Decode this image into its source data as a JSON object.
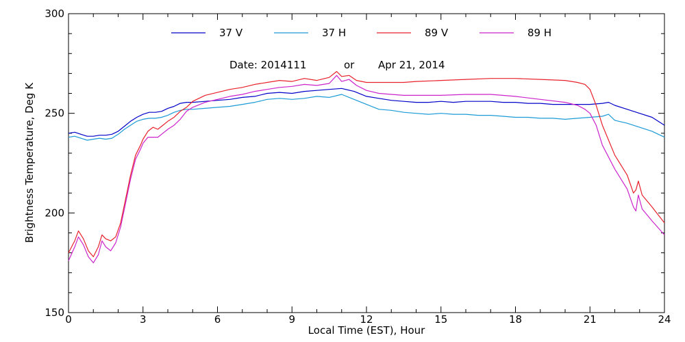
{
  "chart_data": {
    "type": "line",
    "title": "",
    "xlabel": "Local Time (EST), Hour",
    "ylabel": "Brightness Temperature, Deg K",
    "xlim": [
      0,
      24
    ],
    "ylim": [
      150,
      300
    ],
    "xticks": [
      0,
      3,
      6,
      9,
      12,
      15,
      18,
      21,
      24
    ],
    "yticks": [
      150,
      200,
      250,
      300
    ],
    "grid": false,
    "legend_position": "top",
    "annotation": {
      "date_label": "Date: 2014111",
      "or_label": "or",
      "date_text": "Apr 21, 2014"
    },
    "series": [
      {
        "name": "37 V",
        "color": "#0000c8",
        "x": [
          0,
          0.25,
          0.5,
          0.75,
          1,
          1.25,
          1.5,
          1.75,
          2,
          2.25,
          2.5,
          2.75,
          3,
          3.25,
          3.5,
          3.75,
          4,
          4.25,
          4.5,
          4.75,
          5,
          5.5,
          6,
          6.5,
          7,
          7.5,
          8,
          8.5,
          9,
          9.5,
          10,
          10.5,
          11,
          11.5,
          12,
          12.5,
          13,
          13.5,
          14,
          14.5,
          15,
          15.5,
          16,
          16.5,
          17,
          17.5,
          18,
          18.5,
          19,
          19.5,
          20,
          20.5,
          21,
          21.5,
          21.75,
          22,
          22.5,
          23,
          23.5,
          24
        ],
        "y": [
          240,
          240.5,
          239.5,
          238.5,
          238.5,
          239,
          239,
          239.5,
          241,
          243.5,
          246,
          248,
          249.5,
          250.5,
          250.5,
          251,
          252.5,
          253.5,
          255,
          255.5,
          255.5,
          256,
          256.5,
          257,
          258,
          258.5,
          260,
          260.5,
          260,
          261,
          261.5,
          262,
          262.5,
          261,
          258.5,
          257.5,
          256.5,
          256,
          255.5,
          255.5,
          256,
          255.5,
          256,
          256,
          256,
          255.5,
          255.5,
          255,
          255,
          254.5,
          254.5,
          254.5,
          254.5,
          255,
          255.5,
          254,
          252,
          250,
          248,
          244
        ]
      },
      {
        "name": "37 H",
        "color": "#1a9ad6",
        "x": [
          0,
          0.25,
          0.5,
          0.75,
          1,
          1.25,
          1.5,
          1.75,
          2,
          2.25,
          2.5,
          2.75,
          3,
          3.25,
          3.5,
          3.75,
          4,
          4.25,
          4.5,
          4.75,
          5,
          5.5,
          6,
          6.5,
          7,
          7.5,
          8,
          8.5,
          9,
          9.5,
          10,
          10.5,
          11,
          11.5,
          12,
          12.5,
          13,
          13.5,
          14,
          14.5,
          15,
          15.5,
          16,
          16.5,
          17,
          17.5,
          18,
          18.5,
          19,
          19.5,
          20,
          20.5,
          21,
          21.5,
          21.75,
          22,
          22.5,
          23,
          23.5,
          24
        ],
        "y": [
          238,
          238.5,
          237.5,
          236.5,
          237,
          237.5,
          237,
          237.5,
          239.5,
          242,
          244,
          246,
          247,
          247.5,
          247.5,
          248,
          249,
          250.5,
          251.5,
          252,
          252,
          252.5,
          253,
          253.5,
          254.5,
          255.5,
          257,
          257.5,
          257,
          257.5,
          258.5,
          258,
          259.5,
          257,
          254.5,
          252,
          251.5,
          250.5,
          250,
          249.5,
          250,
          249.5,
          249.5,
          249,
          249,
          248.5,
          248,
          248,
          247.5,
          247.5,
          247,
          247.5,
          248,
          248.5,
          249.5,
          246.5,
          245,
          243,
          241,
          238
        ]
      },
      {
        "name": "89 V",
        "color": "#e8202a",
        "x": [
          0,
          0.25,
          0.4,
          0.6,
          0.8,
          1,
          1.2,
          1.35,
          1.5,
          1.7,
          1.9,
          2.1,
          2.3,
          2.5,
          2.7,
          2.9,
          3,
          3.2,
          3.4,
          3.6,
          3.8,
          4,
          4.25,
          4.5,
          4.75,
          5,
          5.5,
          6,
          6.5,
          7,
          7.5,
          8,
          8.5,
          9,
          9.5,
          10,
          10.5,
          10.8,
          11,
          11.3,
          11.6,
          12,
          12.5,
          13,
          13.5,
          14,
          15,
          16,
          17,
          18,
          19,
          20,
          20.5,
          20.8,
          21,
          21.25,
          21.5,
          22,
          22.5,
          22.75,
          22.85,
          22.95,
          23.1,
          23.5,
          24
        ],
        "y": [
          180,
          186,
          191,
          187,
          181,
          178,
          183,
          189,
          187,
          186,
          188,
          195,
          207,
          219,
          229,
          234,
          237,
          241,
          243,
          242,
          244,
          246,
          248,
          251,
          253,
          256,
          259,
          260.5,
          262,
          263,
          264.5,
          265.5,
          266.5,
          266,
          267.5,
          266.5,
          268,
          271,
          268.5,
          269,
          266.5,
          265.5,
          265.5,
          265.5,
          265.5,
          266,
          266.5,
          267,
          267.5,
          267.5,
          267,
          266.5,
          265.5,
          264.5,
          262,
          254,
          244,
          229,
          219,
          210,
          211.5,
          216,
          209,
          203,
          195
        ]
      },
      {
        "name": "89 H",
        "color": "#cc22cc",
        "x": [
          0,
          0.25,
          0.4,
          0.6,
          0.8,
          1,
          1.2,
          1.35,
          1.5,
          1.7,
          1.9,
          2.1,
          2.3,
          2.5,
          2.7,
          2.9,
          3,
          3.2,
          3.4,
          3.6,
          3.8,
          4,
          4.25,
          4.5,
          4.75,
          5,
          5.5,
          6,
          6.5,
          7,
          7.5,
          8,
          8.5,
          9,
          9.5,
          10,
          10.5,
          10.8,
          11,
          11.3,
          11.6,
          12,
          12.5,
          13,
          13.5,
          14,
          15,
          16,
          17,
          18,
          19,
          20,
          20.5,
          20.8,
          21,
          21.25,
          21.5,
          22,
          22.5,
          22.75,
          22.85,
          22.95,
          23.1,
          23.5,
          24
        ],
        "y": [
          176,
          183,
          188,
          184,
          178,
          175,
          179,
          186,
          183,
          181,
          185,
          193,
          205,
          217,
          227,
          232,
          235,
          238,
          238,
          238,
          240,
          242,
          244,
          247,
          251,
          253,
          255.5,
          257,
          258.5,
          259.5,
          261,
          262,
          263,
          263.5,
          264.5,
          264,
          265,
          269,
          266,
          267,
          264,
          261.5,
          260,
          259.5,
          259,
          259,
          259,
          259.5,
          259.5,
          258.5,
          257,
          255.5,
          254,
          252,
          250,
          244,
          234,
          222,
          212,
          203,
          201,
          209,
          202,
          196,
          189
        ]
      }
    ]
  }
}
